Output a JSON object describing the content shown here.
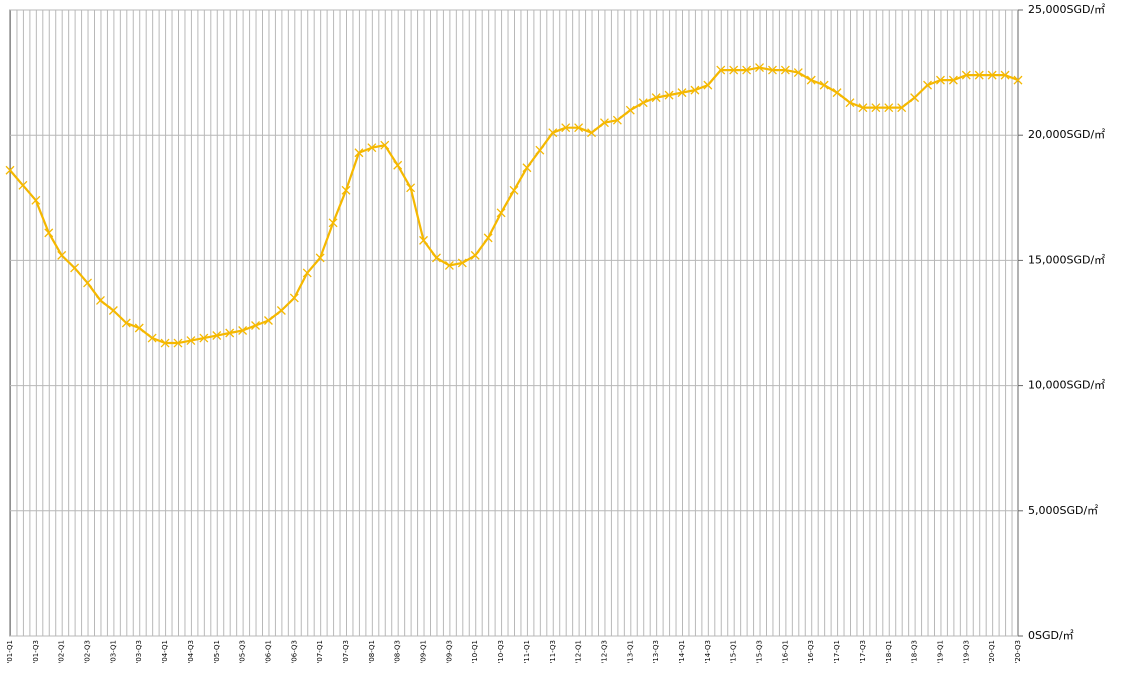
{
  "chart_data": {
    "type": "line",
    "categories": [
      "'01-Q1",
      null,
      "'01-Q3",
      null,
      "'02-Q1",
      null,
      "'02-Q3",
      null,
      "'03-Q1",
      null,
      "'03-Q3",
      null,
      "'04-Q1",
      null,
      "'04-Q3",
      null,
      "'05-Q1",
      null,
      "'05-Q3",
      null,
      "'06-Q1",
      null,
      "'06-Q3",
      null,
      "'07-Q1",
      null,
      "'07-Q3",
      null,
      "'08-Q1",
      null,
      "'08-Q3",
      null,
      "'09-Q1",
      null,
      "'09-Q3",
      null,
      "'10-Q1",
      null,
      "'10-Q3",
      null,
      "'11-Q1",
      null,
      "'11-Q3",
      null,
      "'12-Q1",
      null,
      "'12-Q3",
      null,
      "'13-Q1",
      null,
      "'13-Q3",
      null,
      "'14-Q1",
      null,
      "'14-Q3",
      null,
      "'15-Q1",
      null,
      "'15-Q3",
      null,
      "'16-Q1",
      null,
      "'16-Q3",
      null,
      "'17-Q1",
      null,
      "'17-Q3",
      null,
      "'18-Q1",
      null,
      "'18-Q3",
      null,
      "'19-Q1",
      null,
      "'19-Q3",
      null,
      "'20-Q1",
      null,
      "'20-Q3"
    ],
    "series": [
      {
        "color": "#f5b800",
        "values": [
          18600,
          18000,
          17400,
          16100,
          15200,
          14700,
          14100,
          13400,
          13000,
          12500,
          12300,
          11900,
          11700,
          11700,
          11800,
          11900,
          12000,
          12100,
          12200,
          12400,
          12600,
          13000,
          13500,
          14500,
          15100,
          16500,
          17800,
          19300,
          19500,
          19600,
          18800,
          17900,
          15800,
          15100,
          14800,
          14900,
          15200,
          15900,
          16900,
          17800,
          18700,
          19400,
          20100,
          20300,
          20300,
          20100,
          20500,
          20600,
          21000,
          21300,
          21500,
          21600,
          21700,
          21800,
          22000,
          22600,
          22600,
          22600,
          22700,
          22600,
          22600,
          22500,
          22200,
          22000,
          21700,
          21300,
          21100,
          21100,
          21100,
          21100,
          21500,
          22000,
          22200,
          22200,
          22400,
          22400,
          22400,
          22400,
          22200
        ]
      }
    ],
    "ylim": [
      0,
      25000
    ],
    "yticks": [
      {
        "value": 0,
        "label": "0SGD/㎡"
      },
      {
        "value": 5000,
        "label": "5,000SGD/㎡"
      },
      {
        "value": 10000,
        "label": "10,000SGD/㎡"
      },
      {
        "value": 15000,
        "label": "15,000SGD/㎡"
      },
      {
        "value": 20000,
        "label": "20,000SGD/㎡"
      },
      {
        "value": 25000,
        "label": "25,000SGD/㎡"
      }
    ],
    "grid": true
  }
}
